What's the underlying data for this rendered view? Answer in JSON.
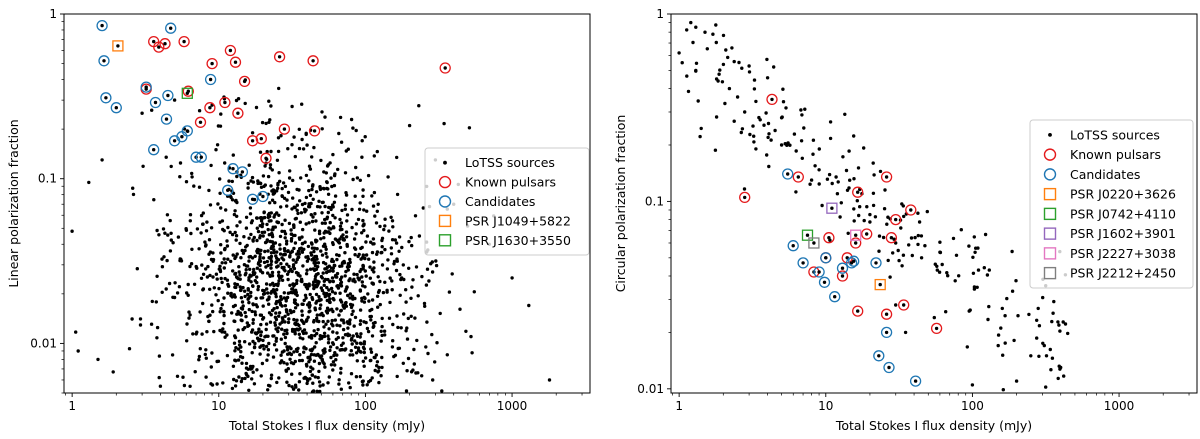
{
  "chart_data": [
    {
      "type": "scatter",
      "title": "",
      "xlabel": "Total Stokes I flux density (mJy)",
      "ylabel": "Linear polarization fraction",
      "xscale": "log",
      "yscale": "log",
      "xlim": [
        0.88,
        3400
      ],
      "ylim": [
        0.005,
        1.0
      ],
      "xticks": [
        {
          "v": 1,
          "label": "1"
        },
        {
          "v": 10,
          "label": "10"
        },
        {
          "v": 100,
          "label": "100"
        },
        {
          "v": 1000,
          "label": "1000"
        }
      ],
      "yticks": [
        {
          "v": 0.01,
          "label": "0.01"
        },
        {
          "v": 0.1,
          "label": "0.1"
        },
        {
          "v": 1,
          "label": "1"
        }
      ],
      "legend_position": "center-right",
      "series": [
        {
          "name": "LoTSS sources",
          "kind": "dots",
          "color": "#000000",
          "generated_count": 1800,
          "points": [
            [
              1.0,
              0.048
            ],
            [
              1.3,
              0.095
            ],
            [
              1.6,
              0.13
            ],
            [
              3.0,
              0.25
            ],
            [
              5.0,
              0.3
            ],
            [
              9.0,
              0.28
            ],
            [
              22.0,
              0.22
            ],
            [
              17.0,
              0.19
            ],
            [
              40.0,
              0.16
            ],
            [
              60.0,
              0.14
            ],
            [
              200.0,
              0.21
            ],
            [
              300.0,
              0.13
            ],
            [
              400.0,
              0.07
            ],
            [
              700.0,
              0.04
            ],
            [
              1000.0,
              0.025
            ],
            [
              1300.0,
              0.017
            ],
            [
              1800.0,
              0.006
            ],
            [
              1.1,
              0.009
            ],
            [
              1.5,
              0.008
            ],
            [
              4.0,
              0.0055
            ]
          ]
        },
        {
          "name": "Known pulsars",
          "kind": "circle",
          "color": "#e41a1c",
          "points": [
            [
              3.6,
              0.68
            ],
            [
              3.9,
              0.63
            ],
            [
              4.3,
              0.66
            ],
            [
              5.8,
              0.68
            ],
            [
              9.0,
              0.5
            ],
            [
              12.0,
              0.6
            ],
            [
              13.0,
              0.51
            ],
            [
              26.0,
              0.55
            ],
            [
              44.0,
              0.52
            ],
            [
              350.0,
              0.47
            ],
            [
              15.0,
              0.39
            ],
            [
              11.0,
              0.29
            ],
            [
              8.7,
              0.27
            ],
            [
              13.5,
              0.25
            ],
            [
              7.5,
              0.22
            ],
            [
              17.0,
              0.17
            ],
            [
              19.5,
              0.175
            ],
            [
              28.0,
              0.2
            ],
            [
              45.0,
              0.195
            ],
            [
              21.0,
              0.133
            ],
            [
              6.2,
              0.34
            ],
            [
              3.2,
              0.35
            ]
          ]
        },
        {
          "name": "Candidates",
          "kind": "circle",
          "color": "#1f77b4",
          "points": [
            [
              1.6,
              0.85
            ],
            [
              4.7,
              0.82
            ],
            [
              1.65,
              0.52
            ],
            [
              1.7,
              0.31
            ],
            [
              2.0,
              0.27
            ],
            [
              3.2,
              0.36
            ],
            [
              3.7,
              0.29
            ],
            [
              4.5,
              0.32
            ],
            [
              8.8,
              0.4
            ],
            [
              4.4,
              0.23
            ],
            [
              5.0,
              0.17
            ],
            [
              5.6,
              0.18
            ],
            [
              6.1,
              0.195
            ],
            [
              3.6,
              0.15
            ],
            [
              7.0,
              0.135
            ],
            [
              7.6,
              0.135
            ],
            [
              12.5,
              0.115
            ],
            [
              14.5,
              0.11
            ],
            [
              11.5,
              0.085
            ],
            [
              17.0,
              0.075
            ],
            [
              20.0,
              0.078
            ]
          ]
        },
        {
          "name": "PSR J1049+5822",
          "kind": "square",
          "color": "#ff7f0e",
          "points": [
            [
              2.05,
              0.64
            ]
          ]
        },
        {
          "name": "PSR J1630+3550",
          "kind": "square",
          "color": "#2ca02c",
          "points": [
            [
              6.1,
              0.33
            ]
          ]
        }
      ]
    },
    {
      "type": "scatter",
      "title": "",
      "xlabel": "Total Stokes I flux density (mJy)",
      "ylabel": "Circular polarization fraction",
      "xscale": "log",
      "yscale": "log",
      "xlim": [
        0.88,
        3400
      ],
      "ylim": [
        0.0095,
        1.0
      ],
      "xticks": [
        {
          "v": 1,
          "label": "1"
        },
        {
          "v": 10,
          "label": "10"
        },
        {
          "v": 100,
          "label": "100"
        },
        {
          "v": 1000,
          "label": "1000"
        }
      ],
      "yticks": [
        {
          "v": 0.01,
          "label": "0.01"
        },
        {
          "v": 0.1,
          "label": "0.1"
        },
        {
          "v": 1,
          "label": "1"
        }
      ],
      "legend_position": "upper-right",
      "series": [
        {
          "name": "LoTSS sources",
          "kind": "dots",
          "color": "#000000",
          "generated_count": 230,
          "points": [
            [
              1.2,
              0.9
            ],
            [
              1.3,
              0.85
            ],
            [
              1.5,
              0.8
            ],
            [
              1.7,
              0.78
            ],
            [
              1.0,
              0.62
            ],
            [
              1.05,
              0.55
            ],
            [
              1.3,
              0.5
            ],
            [
              1.8,
              0.45
            ],
            [
              2.2,
              0.4
            ],
            [
              2.8,
              0.3
            ],
            [
              3.5,
              0.28
            ],
            [
              5.0,
              0.2
            ],
            [
              8.0,
              0.13
            ],
            [
              12.0,
              0.11
            ],
            [
              20.0,
              0.085
            ],
            [
              30.0,
              0.06
            ],
            [
              45.0,
              0.05
            ],
            [
              110.0,
              0.043
            ],
            [
              55.0,
              0.024
            ],
            [
              95.0,
              0.026
            ],
            [
              100.0,
              0.0105
            ],
            [
              150.0,
              0.017
            ],
            [
              200.0,
              0.011
            ],
            [
              250.0,
              0.015
            ],
            [
              320.0,
              0.015
            ],
            [
              400.0,
              0.013
            ],
            [
              35.0,
              0.02
            ],
            [
              30.0,
              0.028
            ]
          ]
        },
        {
          "name": "Known pulsars",
          "kind": "circle",
          "color": "#e41a1c",
          "points": [
            [
              4.3,
              0.35
            ],
            [
              6.5,
              0.135
            ],
            [
              2.8,
              0.105
            ],
            [
              16.5,
              0.112
            ],
            [
              26.0,
              0.135
            ],
            [
              38.0,
              0.09
            ],
            [
              30.0,
              0.08
            ],
            [
              19.0,
              0.067
            ],
            [
              28.0,
              0.064
            ],
            [
              16.0,
              0.06
            ],
            [
              10.5,
              0.064
            ],
            [
              14.0,
              0.05
            ],
            [
              13.0,
              0.04
            ],
            [
              8.3,
              0.042
            ],
            [
              16.5,
              0.026
            ],
            [
              26.0,
              0.025
            ],
            [
              34.0,
              0.028
            ],
            [
              57.0,
              0.021
            ],
            [
              10.0,
              0.05
            ]
          ]
        },
        {
          "name": "Candidates",
          "kind": "circle",
          "color": "#1f77b4",
          "points": [
            [
              5.5,
              0.14
            ],
            [
              6.0,
              0.058
            ],
            [
              7.0,
              0.047
            ],
            [
              9.0,
              0.042
            ],
            [
              9.8,
              0.037
            ],
            [
              10.0,
              0.05
            ],
            [
              11.5,
              0.031
            ],
            [
              13.0,
              0.044
            ],
            [
              15.0,
              0.047
            ],
            [
              15.5,
              0.048
            ],
            [
              22.0,
              0.047
            ],
            [
              23.0,
              0.015
            ],
            [
              26.0,
              0.02
            ],
            [
              27.0,
              0.013
            ],
            [
              41.0,
              0.011
            ]
          ]
        },
        {
          "name": "PSR J0220+3626",
          "kind": "square",
          "color": "#ff7f0e",
          "points": [
            [
              23.5,
              0.036
            ]
          ]
        },
        {
          "name": "PSR J0742+4110",
          "kind": "square",
          "color": "#2ca02c",
          "points": [
            [
              7.5,
              0.066
            ]
          ]
        },
        {
          "name": "PSR J1602+3901",
          "kind": "square",
          "color": "#9467bd",
          "points": [
            [
              11.0,
              0.092
            ]
          ]
        },
        {
          "name": "PSR J2227+3038",
          "kind": "square",
          "color": "#e377c2",
          "points": [
            [
              16.0,
              0.066
            ]
          ]
        },
        {
          "name": "PSR J2212+2450",
          "kind": "square",
          "color": "#7f7f7f",
          "points": [
            [
              8.3,
              0.06
            ]
          ]
        }
      ]
    }
  ]
}
